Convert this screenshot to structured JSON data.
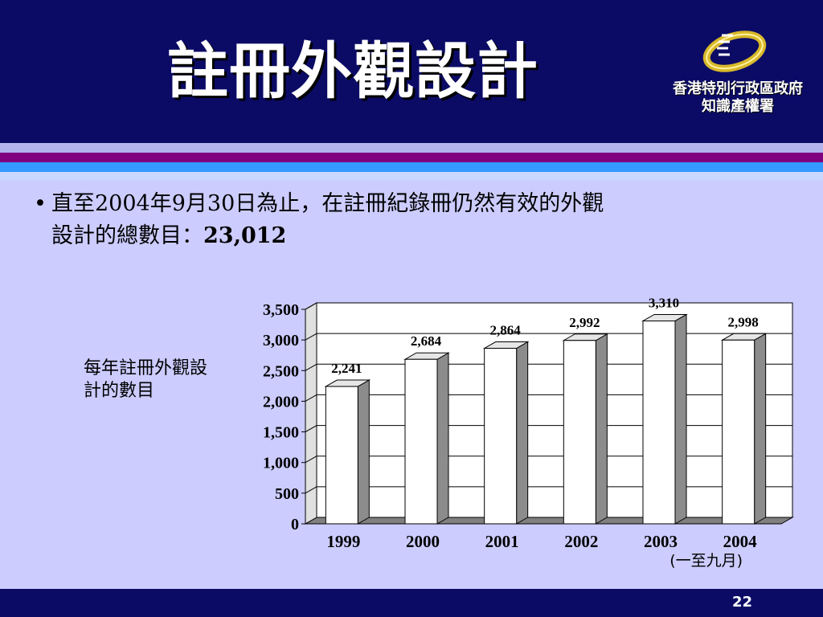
{
  "slide": {
    "title": "註冊外觀設計",
    "logo_line1": "香港特別行政區政府",
    "logo_line2": "知識產權署",
    "bullet_marker": "•",
    "bullet_line1": "直至2004年9月30日為止，在註冊紀錄冊仍然有效的外觀",
    "bullet_line2": "設計的總數目：",
    "bullet_total": "23,012",
    "side_label": "每年註冊外觀設計的數目",
    "note_2004": "(一至九月)",
    "page_number": "22"
  },
  "colors": {
    "header_bg": "#0b0b66",
    "body_bg": "#ccccff",
    "bar_front": "#ffffff",
    "bar_side": "#8c8c8c",
    "bar_top": "#e6e6e6",
    "stripe_purple": "#800080",
    "stripe_blue": "#3399ff"
  },
  "chart_data": {
    "type": "bar",
    "categories": [
      "1999",
      "2000",
      "2001",
      "2002",
      "2003",
      "2004"
    ],
    "values": [
      2241,
      2684,
      2864,
      2992,
      3310,
      2998
    ],
    "value_labels": [
      "2,241",
      "2,684",
      "2,864",
      "2,992",
      "3,310",
      "2,998"
    ],
    "y_ticks": [
      "0",
      "500",
      "1,000",
      "1,500",
      "2,000",
      "2,500",
      "3,000",
      "3,500"
    ],
    "ylim": [
      0,
      3500
    ],
    "grid": true,
    "style": "3d"
  }
}
